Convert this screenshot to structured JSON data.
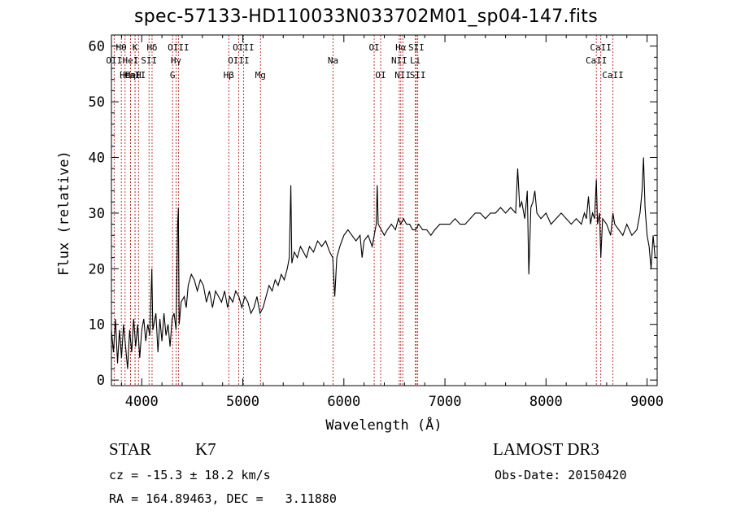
{
  "chart_data": {
    "type": "line",
    "title": "spec-57133-HD110033N033702M01_sp04-147.fits",
    "xlabel": "Wavelength (Å)",
    "ylabel": "Flux (relative)",
    "xlim": [
      3700,
      9100
    ],
    "ylim": [
      -1,
      62
    ],
    "xticks": [
      4000,
      5000,
      6000,
      7000,
      8000,
      9000
    ],
    "yticks": [
      0,
      10,
      20,
      30,
      40,
      50,
      60
    ],
    "series": [
      {
        "name": "spectrum",
        "color": "#000000",
        "points": [
          [
            3700,
            9
          ],
          [
            3720,
            5
          ],
          [
            3740,
            11
          ],
          [
            3760,
            3
          ],
          [
            3780,
            9
          ],
          [
            3800,
            4
          ],
          [
            3820,
            10
          ],
          [
            3840,
            6
          ],
          [
            3860,
            2
          ],
          [
            3880,
            9
          ],
          [
            3900,
            5
          ],
          [
            3920,
            11
          ],
          [
            3940,
            6
          ],
          [
            3960,
            10
          ],
          [
            3980,
            4
          ],
          [
            4000,
            9
          ],
          [
            4020,
            11
          ],
          [
            4040,
            7
          ],
          [
            4060,
            10
          ],
          [
            4080,
            8
          ],
          [
            4100,
            20
          ],
          [
            4110,
            9
          ],
          [
            4140,
            12
          ],
          [
            4160,
            5
          ],
          [
            4180,
            11
          ],
          [
            4200,
            7
          ],
          [
            4220,
            12
          ],
          [
            4240,
            8
          ],
          [
            4260,
            10
          ],
          [
            4280,
            6
          ],
          [
            4300,
            11
          ],
          [
            4320,
            12
          ],
          [
            4340,
            9
          ],
          [
            4355,
            28
          ],
          [
            4362,
            31
          ],
          [
            4370,
            10
          ],
          [
            4390,
            14
          ],
          [
            4420,
            15
          ],
          [
            4440,
            13
          ],
          [
            4460,
            17
          ],
          [
            4490,
            19
          ],
          [
            4520,
            18
          ],
          [
            4550,
            16
          ],
          [
            4580,
            18
          ],
          [
            4610,
            17
          ],
          [
            4640,
            14
          ],
          [
            4670,
            16
          ],
          [
            4700,
            13
          ],
          [
            4730,
            16
          ],
          [
            4760,
            15
          ],
          [
            4790,
            14
          ],
          [
            4820,
            16
          ],
          [
            4850,
            13
          ],
          [
            4870,
            15
          ],
          [
            4900,
            14
          ],
          [
            4930,
            16
          ],
          [
            4960,
            15
          ],
          [
            4990,
            13
          ],
          [
            5020,
            15
          ],
          [
            5050,
            14
          ],
          [
            5080,
            12
          ],
          [
            5110,
            13
          ],
          [
            5140,
            15
          ],
          [
            5170,
            12
          ],
          [
            5200,
            13
          ],
          [
            5230,
            15
          ],
          [
            5260,
            17
          ],
          [
            5290,
            16
          ],
          [
            5320,
            18
          ],
          [
            5350,
            17
          ],
          [
            5380,
            19
          ],
          [
            5410,
            18
          ],
          [
            5440,
            20
          ],
          [
            5460,
            22
          ],
          [
            5475,
            35
          ],
          [
            5485,
            21
          ],
          [
            5510,
            23
          ],
          [
            5540,
            22
          ],
          [
            5570,
            24
          ],
          [
            5600,
            23
          ],
          [
            5630,
            22
          ],
          [
            5660,
            24
          ],
          [
            5700,
            23
          ],
          [
            5740,
            25
          ],
          [
            5780,
            24
          ],
          [
            5820,
            25
          ],
          [
            5860,
            23
          ],
          [
            5890,
            22
          ],
          [
            5910,
            15
          ],
          [
            5930,
            22
          ],
          [
            5960,
            24
          ],
          [
            6000,
            26
          ],
          [
            6040,
            27
          ],
          [
            6080,
            26
          ],
          [
            6120,
            25
          ],
          [
            6160,
            26
          ],
          [
            6180,
            22
          ],
          [
            6200,
            25
          ],
          [
            6240,
            26
          ],
          [
            6280,
            24
          ],
          [
            6300,
            26
          ],
          [
            6320,
            28
          ],
          [
            6330,
            35
          ],
          [
            6340,
            28
          ],
          [
            6370,
            27
          ],
          [
            6400,
            26
          ],
          [
            6430,
            27
          ],
          [
            6470,
            28
          ],
          [
            6510,
            27
          ],
          [
            6540,
            29
          ],
          [
            6563,
            28
          ],
          [
            6590,
            29
          ],
          [
            6620,
            28
          ],
          [
            6650,
            28
          ],
          [
            6680,
            27
          ],
          [
            6710,
            27
          ],
          [
            6740,
            28
          ],
          [
            6780,
            27
          ],
          [
            6820,
            27
          ],
          [
            6860,
            26
          ],
          [
            6900,
            27
          ],
          [
            6950,
            28
          ],
          [
            7000,
            28
          ],
          [
            7050,
            28
          ],
          [
            7100,
            29
          ],
          [
            7150,
            28
          ],
          [
            7200,
            28
          ],
          [
            7250,
            29
          ],
          [
            7300,
            30
          ],
          [
            7350,
            30
          ],
          [
            7400,
            29
          ],
          [
            7450,
            30
          ],
          [
            7500,
            30
          ],
          [
            7550,
            31
          ],
          [
            7600,
            30
          ],
          [
            7650,
            31
          ],
          [
            7700,
            30
          ],
          [
            7720,
            38
          ],
          [
            7740,
            31
          ],
          [
            7760,
            32
          ],
          [
            7790,
            29
          ],
          [
            7800,
            31
          ],
          [
            7815,
            34
          ],
          [
            7830,
            19
          ],
          [
            7850,
            31
          ],
          [
            7870,
            32
          ],
          [
            7890,
            34
          ],
          [
            7910,
            30
          ],
          [
            7950,
            29
          ],
          [
            8000,
            30
          ],
          [
            8050,
            28
          ],
          [
            8100,
            29
          ],
          [
            8150,
            30
          ],
          [
            8200,
            29
          ],
          [
            8250,
            28
          ],
          [
            8300,
            29
          ],
          [
            8350,
            28
          ],
          [
            8380,
            30
          ],
          [
            8400,
            29
          ],
          [
            8420,
            33
          ],
          [
            8440,
            28
          ],
          [
            8460,
            30
          ],
          [
            8480,
            29
          ],
          [
            8498,
            36
          ],
          [
            8510,
            28
          ],
          [
            8530,
            30
          ],
          [
            8542,
            22
          ],
          [
            8560,
            29
          ],
          [
            8600,
            28
          ],
          [
            8640,
            26
          ],
          [
            8662,
            30
          ],
          [
            8680,
            28
          ],
          [
            8720,
            27
          ],
          [
            8760,
            26
          ],
          [
            8800,
            28
          ],
          [
            8850,
            26
          ],
          [
            8900,
            27
          ],
          [
            8930,
            30
          ],
          [
            8950,
            34
          ],
          [
            8965,
            40
          ],
          [
            8980,
            31
          ],
          [
            9000,
            26
          ],
          [
            9020,
            24
          ],
          [
            9040,
            20
          ],
          [
            9060,
            26
          ],
          [
            9080,
            22
          ],
          [
            9100,
            22
          ]
        ]
      }
    ],
    "lines": [
      {
        "name": "Hθ",
        "x": 3798,
        "row": 1
      },
      {
        "name": "OII",
        "x": 3727,
        "row": 2
      },
      {
        "name": "CaII",
        "x": 3934,
        "row": 3
      },
      {
        "name": "Hε",
        "x": 3835,
        "row": 3
      },
      {
        "name": "Hη",
        "x": 3889,
        "row": 3
      },
      {
        "name": "HeI",
        "x": 3889,
        "row": 2
      },
      {
        "name": "K",
        "x": 3934,
        "row": 1
      },
      {
        "name": "H",
        "x": 3968,
        "row": 3
      },
      {
        "name": "Hδ",
        "x": 4102,
        "row": 1
      },
      {
        "name": "SII",
        "x": 4072,
        "row": 2
      },
      {
        "name": "OIII",
        "x": 4363,
        "row": 1
      },
      {
        "name": "Hγ",
        "x": 4340,
        "row": 2
      },
      {
        "name": "G",
        "x": 4305,
        "row": 3
      },
      {
        "name": "Hβ",
        "x": 4861,
        "row": 3
      },
      {
        "name": "OIII",
        "x": 5007,
        "row": 1
      },
      {
        "name": "OIII",
        "x": 4959,
        "row": 2
      },
      {
        "name": "Mg",
        "x": 5175,
        "row": 3
      },
      {
        "name": "Na",
        "x": 5893,
        "row": 2
      },
      {
        "name": "OI",
        "x": 6300,
        "row": 1
      },
      {
        "name": "OI",
        "x": 6364,
        "row": 3
      },
      {
        "name": "Hα",
        "x": 6563,
        "row": 1
      },
      {
        "name": "NII",
        "x": 6548,
        "row": 2
      },
      {
        "name": "NII",
        "x": 6583,
        "row": 3
      },
      {
        "name": "SII",
        "x": 6717,
        "row": 1
      },
      {
        "name": "Li",
        "x": 6707,
        "row": 2
      },
      {
        "name": "SII",
        "x": 6731,
        "row": 3
      },
      {
        "name": "CaII",
        "x": 8542,
        "row": 1
      },
      {
        "name": "CaII",
        "x": 8498,
        "row": 2
      },
      {
        "name": "CaII",
        "x": 8662,
        "row": 3
      }
    ]
  },
  "info": {
    "object_class": "STAR",
    "subclass": "K7",
    "survey": "LAMOST DR3",
    "cz": "cz = -15.3 ± 18.2 km/s",
    "obs_date": "Obs-Date: 20150420",
    "coords": "RA = 164.89463, DEC =   3.11880"
  },
  "colors": {
    "line_marker": "#b22222",
    "spectrum": "#000000",
    "axes": "#000000"
  }
}
